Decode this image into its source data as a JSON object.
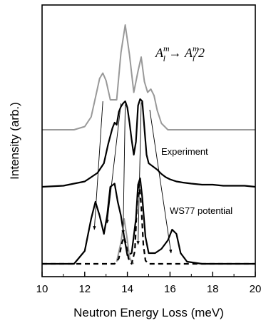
{
  "chart_data": {
    "type": "line",
    "title": "",
    "xlabel": "Neutron Energy Loss (meV)",
    "ylabel": "Intensity (arb.)",
    "xlim": [
      10,
      20
    ],
    "xticks": [
      "10",
      "12",
      "14",
      "16",
      "18",
      "20"
    ],
    "grid": false,
    "annotations": {
      "formula": {
        "A1": "A",
        "sub": "l",
        "sup": "m",
        "arrow": " → ",
        "A2": "A",
        "tail": "/2"
      },
      "experiment_label": "Experiment",
      "potential_label": "WS77 potential"
    },
    "series": [
      {
        "color": "#999999",
        "style": "solid",
        "x": [
          10.0,
          11.5,
          12.0,
          12.3,
          12.5,
          12.7,
          12.85,
          13.0,
          13.2,
          13.5,
          13.7,
          13.9,
          14.1,
          14.3,
          14.5,
          14.65,
          14.8,
          14.95,
          15.1,
          15.25,
          15.4,
          15.6,
          15.9,
          16.5,
          20.0
        ],
        "y": [
          0.0,
          0.0,
          0.03,
          0.12,
          0.3,
          0.48,
          0.53,
          0.46,
          0.28,
          0.28,
          0.72,
          0.98,
          0.7,
          0.35,
          0.55,
          0.68,
          0.45,
          0.35,
          0.38,
          0.32,
          0.18,
          0.06,
          0.0,
          0.0,
          0.0
        ]
      },
      {
        "color": "#000000",
        "style": "solid",
        "x": [
          10.0,
          11.0,
          11.5,
          12.0,
          12.3,
          12.6,
          12.9,
          13.1,
          13.3,
          13.4,
          13.5,
          13.6,
          13.7,
          13.8,
          13.9,
          14.0,
          14.1,
          14.2,
          14.3,
          14.4,
          14.5,
          14.6,
          14.7,
          14.8,
          14.9,
          15.0,
          15.2,
          15.4,
          15.6,
          15.8,
          16.0,
          16.3,
          16.6,
          17.0,
          17.5,
          18.0,
          18.5,
          19.0,
          19.5,
          20.0
        ],
        "y": [
          0.0,
          0.01,
          0.03,
          0.05,
          0.09,
          0.13,
          0.22,
          0.4,
          0.55,
          0.6,
          0.58,
          0.7,
          0.75,
          0.78,
          0.8,
          0.74,
          0.6,
          0.44,
          0.3,
          0.42,
          0.76,
          0.82,
          0.8,
          0.55,
          0.3,
          0.22,
          0.19,
          0.16,
          0.12,
          0.09,
          0.07,
          0.05,
          0.04,
          0.03,
          0.02,
          0.02,
          0.01,
          0.01,
          0.01,
          0.0
        ]
      },
      {
        "color": "#000000",
        "style": "solid",
        "x": [
          10.0,
          11.5,
          12.0,
          12.3,
          12.5,
          12.7,
          12.9,
          13.05,
          13.2,
          13.4,
          13.55,
          13.7,
          13.85,
          14.0,
          14.2,
          14.4,
          14.5,
          14.6,
          14.7,
          14.85,
          15.0,
          15.3,
          15.6,
          15.9,
          16.1,
          16.3,
          16.5,
          16.8,
          17.5,
          20.0
        ],
        "y": [
          0.0,
          0.0,
          0.12,
          0.42,
          0.58,
          0.45,
          0.28,
          0.45,
          0.72,
          0.75,
          0.58,
          0.45,
          0.25,
          0.08,
          0.1,
          0.42,
          0.74,
          0.8,
          0.62,
          0.25,
          0.1,
          0.1,
          0.14,
          0.22,
          0.32,
          0.28,
          0.1,
          0.02,
          0.0,
          0.0
        ]
      },
      {
        "color": "#999999",
        "style": "solid",
        "x": [
          13.5,
          13.7,
          13.85,
          14.0,
          14.1,
          14.2,
          14.3
        ],
        "y": [
          0.02,
          0.2,
          0.42,
          0.22,
          0.06,
          0.02,
          0.0
        ]
      },
      {
        "color": "#000000",
        "style": "dashed",
        "x": [
          10.0,
          13.4,
          13.6,
          13.75,
          13.85,
          13.95,
          14.05,
          14.2,
          14.35,
          14.45,
          14.55,
          14.65,
          14.75,
          14.85,
          15.0,
          15.2,
          20.0
        ],
        "y": [
          0.0,
          0.0,
          0.05,
          0.2,
          0.25,
          0.18,
          0.05,
          0.0,
          0.12,
          0.55,
          0.74,
          0.55,
          0.18,
          0.03,
          0.0,
          0.0,
          0.0
        ]
      }
    ],
    "arrows": [
      {
        "from": [
          12.85,
          0.8
        ],
        "to": [
          12.45,
          0.32
        ]
      },
      {
        "from": [
          13.7,
          0.78
        ],
        "to": [
          13.05,
          0.38
        ]
      },
      {
        "from": [
          13.9,
          0.77
        ],
        "to": [
          13.8,
          0.28
        ]
      },
      {
        "from": [
          14.65,
          0.79
        ],
        "to": [
          14.5,
          0.18
        ]
      },
      {
        "from": [
          15.05,
          0.72
        ],
        "to": [
          16.05,
          0.1
        ]
      }
    ]
  }
}
